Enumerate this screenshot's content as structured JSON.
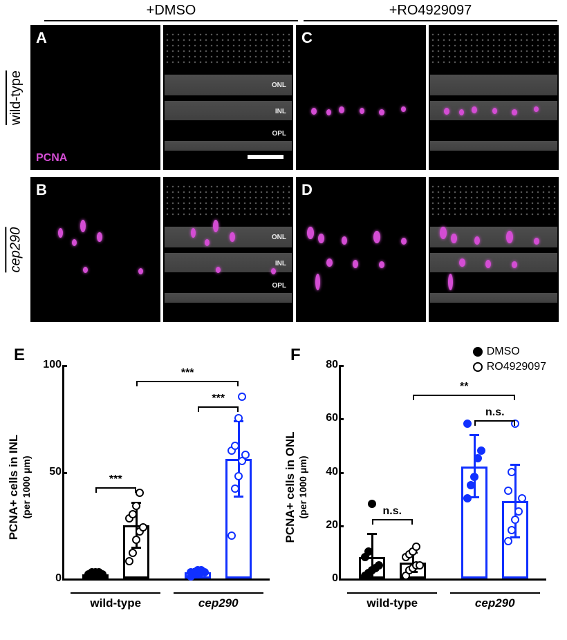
{
  "treatments": {
    "dmso": "+DMSO",
    "ro": "+RO4929097"
  },
  "genotypes": {
    "wt": "wild-type",
    "mut": "cep290"
  },
  "panel_letters": [
    "A",
    "B",
    "C",
    "D",
    "E",
    "F"
  ],
  "marker_label": "PCNA",
  "marker_color": "#d44dd4",
  "layer_labels": {
    "onl": "ONL",
    "inl": "INL",
    "opl": "OPL"
  },
  "micrograph_bg": "#000000",
  "nuclei_gray": "#b0b0b0",
  "legend": {
    "dmso": "DMSO",
    "ro": "RO4929097"
  },
  "chartE": {
    "type": "bar_scatter",
    "panel": "E",
    "ylabel_line1": "PCNA+ cells in INL",
    "ylabel_line2": "(per 1000 μm)",
    "ylim": [
      0,
      100
    ],
    "ytick_step": 50,
    "groups": [
      {
        "name": "wild-type",
        "bars": [
          {
            "treatment": "DMSO",
            "mean": 2,
            "sd": 2,
            "color": "#000000",
            "fill": "filled",
            "points": [
              1,
              1,
              2,
              2,
              2,
              2,
              3,
              3,
              3
            ]
          },
          {
            "treatment": "RO4929097",
            "mean": 25,
            "sd": 11,
            "color": "#000000",
            "fill": "open",
            "points": [
              8,
              12,
              18,
              22,
              24,
              28,
              30,
              34,
              40
            ]
          }
        ],
        "sig": "***"
      },
      {
        "name": "cep290",
        "italic": true,
        "bars": [
          {
            "treatment": "DMSO",
            "mean": 3,
            "sd": 2,
            "color": "#1030ff",
            "fill": "filled",
            "points": [
              1,
              2,
              2,
              3,
              3,
              3,
              3,
              4,
              4
            ]
          },
          {
            "treatment": "RO4929097",
            "mean": 56,
            "sd": 18,
            "color": "#1030ff",
            "fill": "open",
            "points": [
              20,
              42,
              48,
              55,
              58,
              60,
              62,
              75,
              85
            ]
          }
        ],
        "sig": "***"
      }
    ],
    "cross_sig": {
      "from": "wt_ro",
      "to": "cep_ro",
      "label": "***"
    }
  },
  "chartF": {
    "type": "bar_scatter",
    "panel": "F",
    "ylabel_line1": "PCNA+ cells in ONL",
    "ylabel_line2": "(per 1000 μm)",
    "ylim": [
      0,
      80
    ],
    "ytick_step": 20,
    "groups": [
      {
        "name": "wild-type",
        "bars": [
          {
            "treatment": "DMSO",
            "mean": 8,
            "sd": 9,
            "color": "#000000",
            "fill": "filled",
            "points": [
              1,
              2,
              3,
              4,
              5,
              8,
              10,
              28
            ]
          },
          {
            "treatment": "RO4929097",
            "mean": 6,
            "sd": 4,
            "color": "#000000",
            "fill": "open",
            "points": [
              1,
              3,
              4,
              5,
              5,
              8,
              9,
              10,
              12
            ]
          }
        ],
        "sig": "n.s."
      },
      {
        "name": "cep290",
        "italic": true,
        "bars": [
          {
            "treatment": "DMSO",
            "mean": 42,
            "sd": 12,
            "color": "#1030ff",
            "fill": "filled",
            "points": [
              30,
              35,
              38,
              45,
              48,
              58
            ]
          },
          {
            "treatment": "RO4929097",
            "mean": 29,
            "sd": 14,
            "color": "#1030ff",
            "fill": "open",
            "points": [
              14,
              18,
              22,
              25,
              30,
              33,
              40,
              58
            ]
          }
        ],
        "sig": "n.s."
      }
    ],
    "cross_sig": {
      "from": "wt_ro",
      "to": "cep_ro",
      "label": "**"
    }
  },
  "colors": {
    "black": "#000000",
    "blue": "#1030ff",
    "white": "#ffffff"
  }
}
